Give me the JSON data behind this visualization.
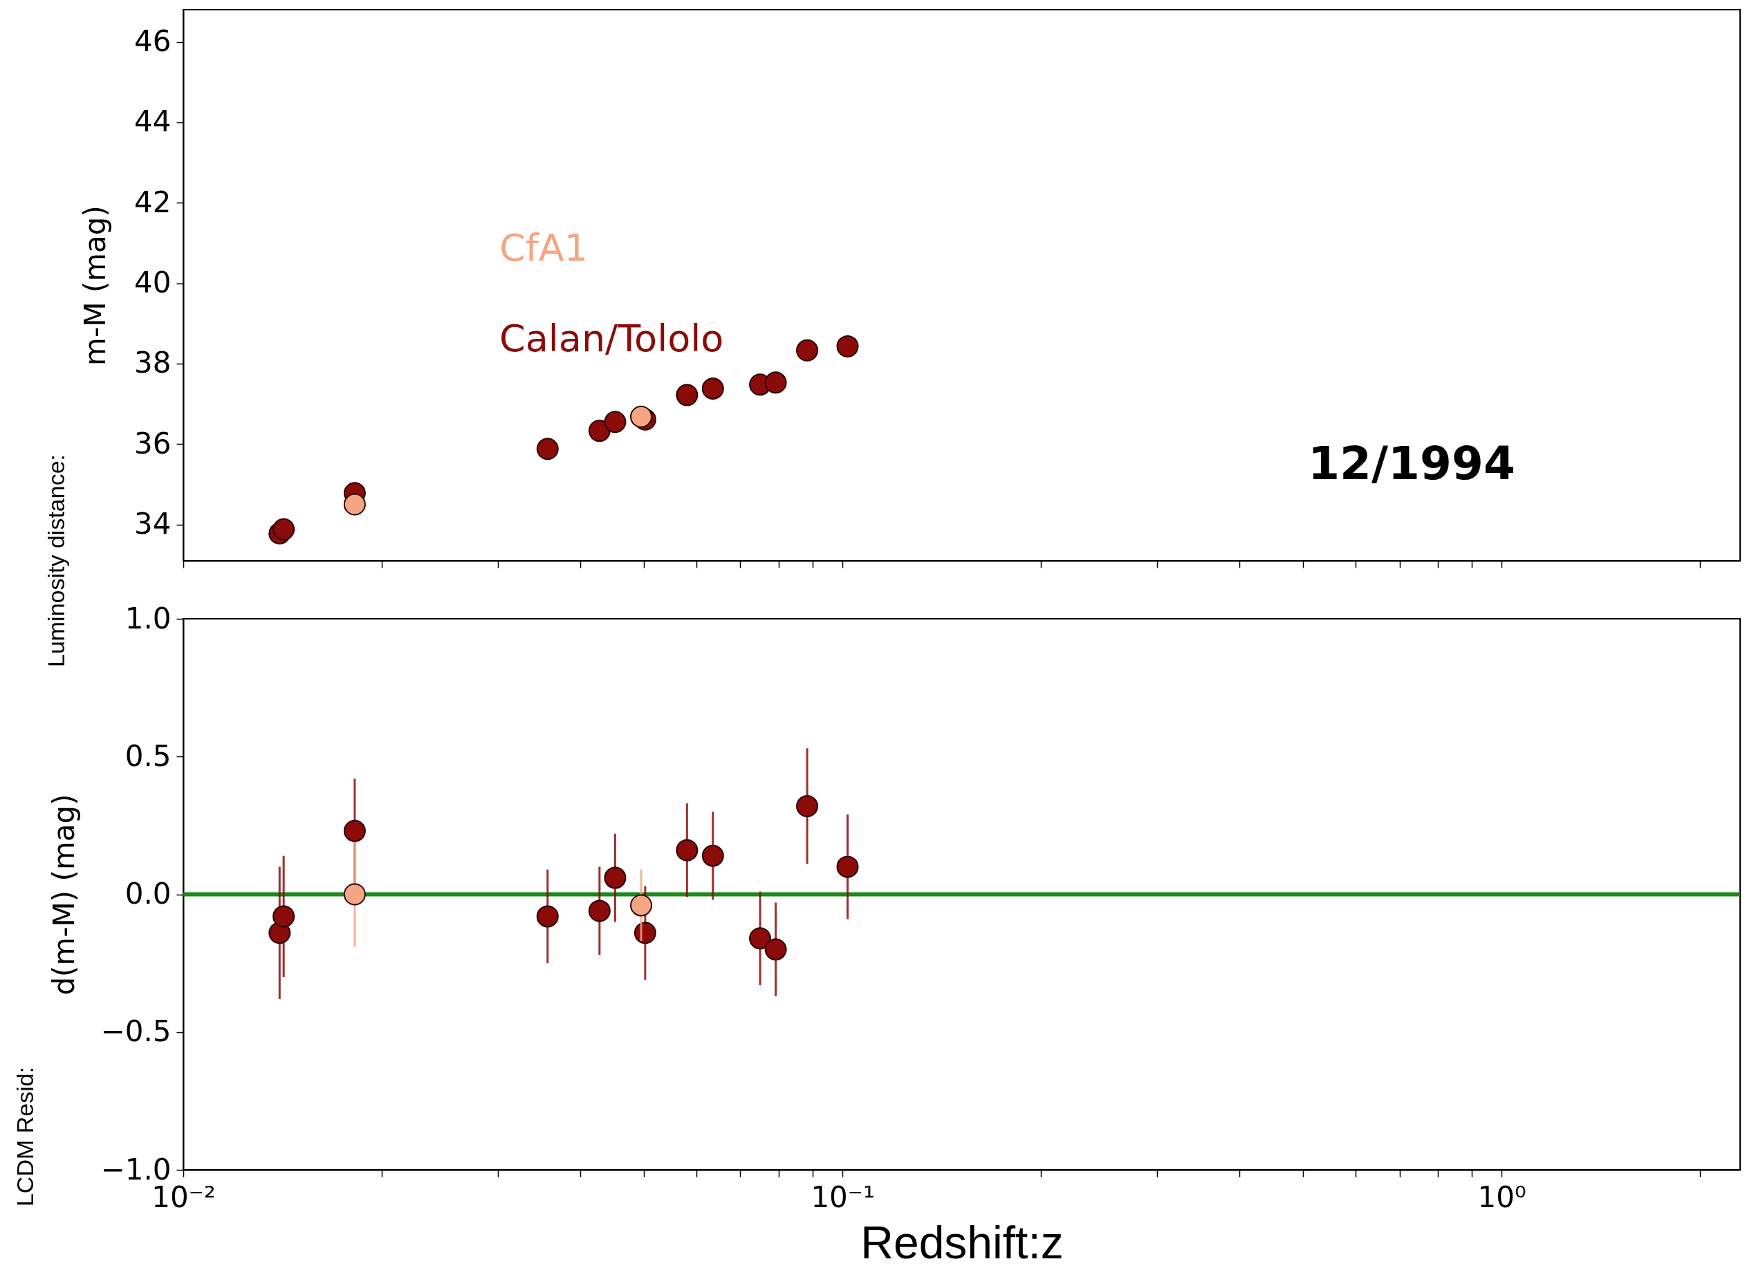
{
  "chart_data": [
    {
      "type": "scatter",
      "ylabel": "m-M (mag)",
      "log": "x",
      "marker": "circle",
      "legend": "left",
      "tick_labels": "y",
      "xlim": [
        0.01,
        2.3
      ],
      "xticks": [
        {
          "value": 0.01,
          "label": null
        },
        {
          "value": 0.1,
          "label": null
        },
        {
          "value": 1,
          "label": null
        },
        {
          "value": 0.02,
          "label": null
        },
        {
          "value": 0.03,
          "label": null
        },
        {
          "value": 0.04,
          "label": null
        },
        {
          "value": 0.05,
          "label": null
        },
        {
          "value": 0.06,
          "label": null
        },
        {
          "value": 0.07,
          "label": null
        },
        {
          "value": 0.08,
          "label": null
        },
        {
          "value": 0.09,
          "label": null
        },
        {
          "value": 0.2,
          "label": null
        },
        {
          "value": 0.3,
          "label": null
        },
        {
          "value": 0.4,
          "label": null
        },
        {
          "value": 0.5,
          "label": null
        },
        {
          "value": 0.6,
          "label": null
        },
        {
          "value": 0.7,
          "label": null
        },
        {
          "value": 0.8,
          "label": null
        },
        {
          "value": 0.9,
          "label": null
        },
        {
          "value": 2,
          "label": null
        }
      ],
      "ylim": [
        33.1,
        46.8
      ],
      "yticks": [
        34,
        36,
        38,
        40,
        42,
        44,
        46
      ],
      "annotations": [
        "12/1994",
        "Luminosity distance:"
      ],
      "series": [
        {
          "name": "Calan/Tololo",
          "color": "#8b0a0a",
          "x": [
            0.014,
            0.0142,
            0.0182,
            0.0357,
            0.0428,
            0.0452,
            0.0502,
            0.0581,
            0.0636,
            0.075,
            0.0792,
            0.0884,
            0.1018
          ],
          "values": [
            33.78,
            33.88,
            34.78,
            35.88,
            36.33,
            36.55,
            36.61,
            37.22,
            37.38,
            37.48,
            37.53,
            38.33,
            38.43
          ]
        },
        {
          "name": "CfA1",
          "color": "#f4a582",
          "x": [
            0.0182,
            0.0495
          ],
          "values": [
            34.5,
            36.68
          ]
        }
      ]
    },
    {
      "type": "scatter",
      "xlabel": "Redshift:z",
      "ylabel": "d(m-M) (mag)",
      "log": "x",
      "marker": "circle",
      "xlim": [
        0.01,
        2.3
      ],
      "xticks": [
        {
          "value": 0.01,
          "label": "10⁻²"
        },
        {
          "value": 0.1,
          "label": "10⁻¹"
        },
        {
          "value": 1,
          "label": "10⁰"
        },
        {
          "value": 0.02,
          "label": null
        },
        {
          "value": 0.03,
          "label": null
        },
        {
          "value": 0.04,
          "label": null
        },
        {
          "value": 0.05,
          "label": null
        },
        {
          "value": 0.06,
          "label": null
        },
        {
          "value": 0.07,
          "label": null
        },
        {
          "value": 0.08,
          "label": null
        },
        {
          "value": 0.09,
          "label": null
        },
        {
          "value": 0.2,
          "label": null
        },
        {
          "value": 0.3,
          "label": null
        },
        {
          "value": 0.4,
          "label": null
        },
        {
          "value": 0.5,
          "label": null
        },
        {
          "value": 0.6,
          "label": null
        },
        {
          "value": 0.7,
          "label": null
        },
        {
          "value": 0.8,
          "label": null
        },
        {
          "value": 0.9,
          "label": null
        },
        {
          "value": 2,
          "label": null
        }
      ],
      "ylim": [
        -1,
        1
      ],
      "yticks": [
        {
          "value": -1,
          "label": "−1.0"
        },
        {
          "value": -0.5,
          "label": "−0.5"
        },
        {
          "value": 0,
          "label": "0.0"
        },
        {
          "value": 0.5,
          "label": "0.5"
        },
        {
          "value": 1,
          "label": "1.0"
        }
      ],
      "ref_lines": [
        {
          "axis": "y",
          "value": 0,
          "color": "#1a8a1a"
        }
      ],
      "annotations": [
        "LCDM Resid:"
      ],
      "series": [
        {
          "color": "#8b0a0a",
          "x": [
            0.014,
            0.0142,
            0.0182,
            0.0357,
            0.0428,
            0.0452,
            0.0502,
            0.0581,
            0.0636,
            0.075,
            0.0792,
            0.0884,
            0.1018
          ],
          "values": [
            -0.14,
            -0.08,
            0.23,
            -0.08,
            -0.06,
            0.06,
            -0.14,
            0.16,
            0.14,
            -0.16,
            -0.2,
            0.32,
            0.1
          ],
          "errors": [
            0.24,
            0.22,
            0.19,
            0.17,
            0.16,
            0.16,
            0.17,
            0.17,
            0.16,
            0.17,
            0.17,
            0.21,
            0.19
          ]
        },
        {
          "color": "#f4a582",
          "x": [
            0.0182,
            0.0495
          ],
          "values": [
            0,
            -0.04
          ],
          "errors": [
            0.19,
            0.13
          ]
        }
      ]
    }
  ]
}
